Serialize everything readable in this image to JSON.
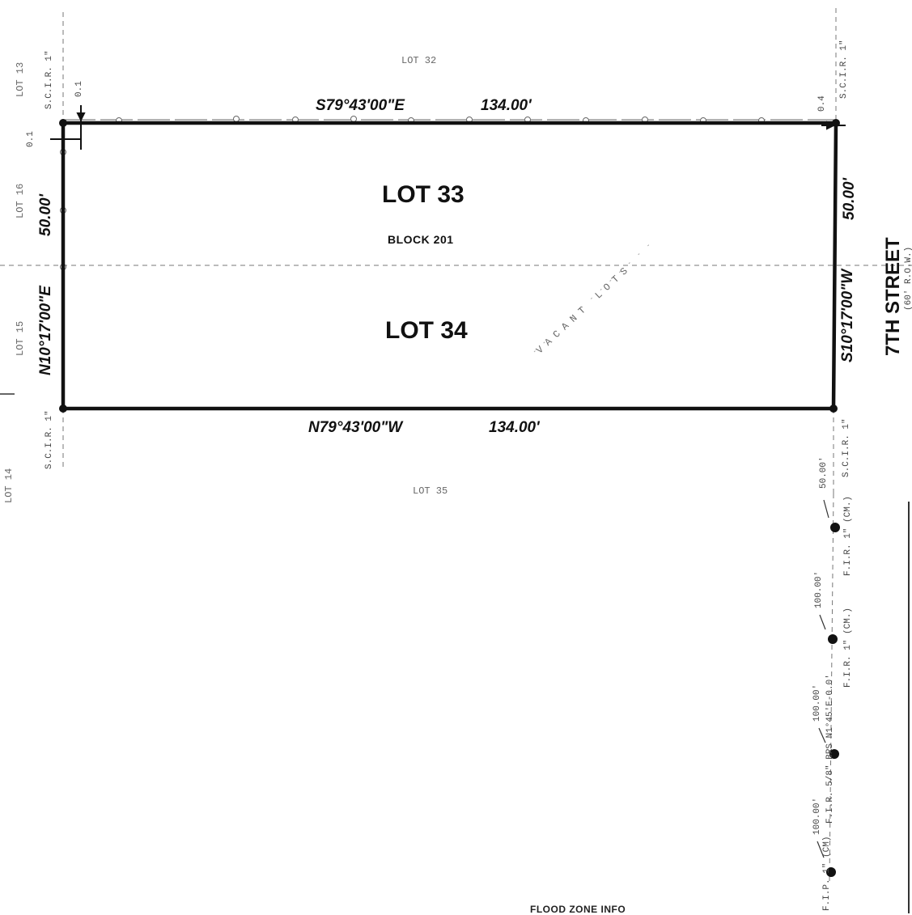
{
  "lots": {
    "lot33": "LOT 33",
    "lot34": "LOT 34",
    "block": "BLOCK 201",
    "lot35": "LOT 35",
    "lot14": "LOT 14",
    "lot15": "LOT 15",
    "lot16": "LOT 16",
    "lot13": "LOT 13",
    "top_lot": "LOT 32",
    "vacant": "VACANT LOTS"
  },
  "bearings": {
    "north_line": "S79°43'00\"E",
    "north_dist": "134.00'",
    "south_line": "N79°43'00\"W",
    "south_dist": "134.00'",
    "west_line": "N10°17'00\"E",
    "west_dist": "50.00'",
    "east_line": "S10°17'00\"W",
    "east_dist": "50.00'"
  },
  "street": {
    "name": "7TH STREET",
    "row": "(60' R.O.W.)"
  },
  "monuments": {
    "scir_ne": "S.C.I.R. 1\"",
    "scir_nw": "S.C.I.R. 1\"",
    "scir_sw": "S.C.I.R. 1\"",
    "scir_se": "S.C.I.R. 1\"",
    "fir1": "F.I.R. 1\" (CM.)",
    "fir2": "F.I.R. 1\" (CM.)",
    "fir3": "F.I.R. 5/8\" BRS N1°45'E-0.0'",
    "fip": "F.I.P. 1\" (CM)"
  },
  "distances": {
    "d1": "50.00'",
    "d2": "100.00'",
    "d3": "100.00'",
    "d4": "100.00'",
    "ne_offset": "0.4",
    "nw_offset": "0.1",
    "nw_offset2": "0.1"
  },
  "notes": {
    "bottom": "FLOOD ZONE INFO"
  }
}
